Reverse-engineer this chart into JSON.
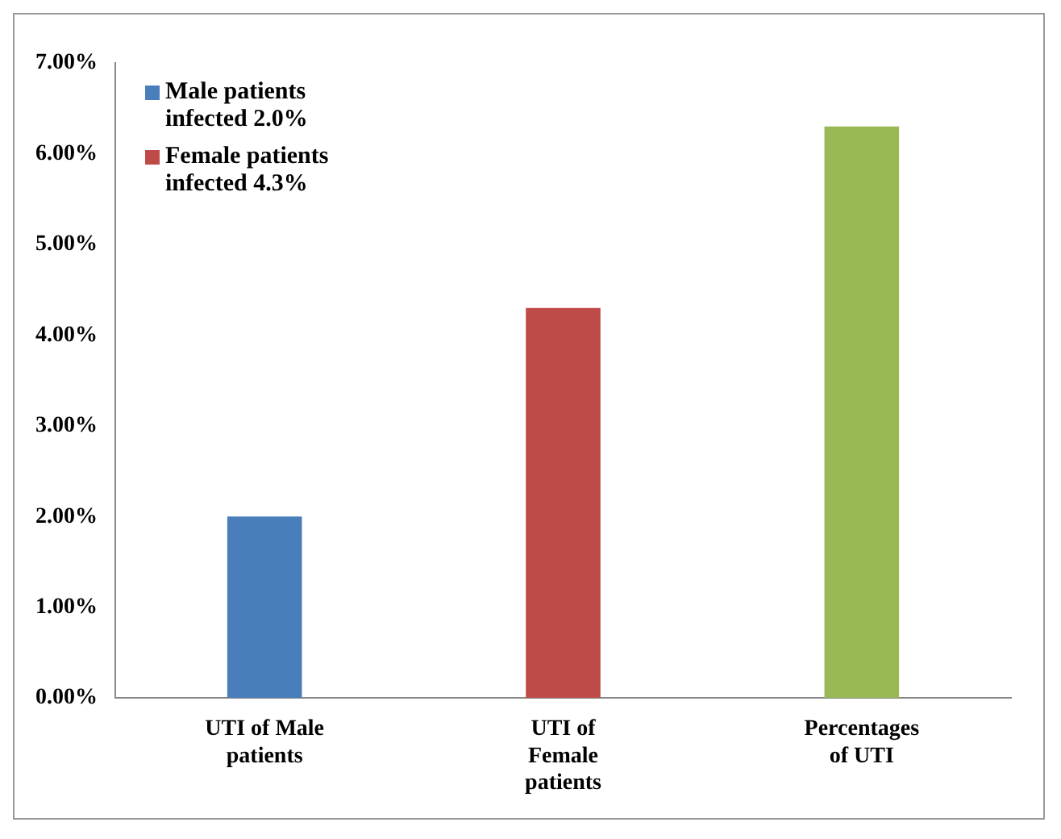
{
  "chart_data": {
    "type": "bar",
    "categories": [
      "UTI of Male patients",
      "UTI of Female patients",
      "Percentages of UTI"
    ],
    "series": [
      {
        "name": "Male patients infected 2.0%",
        "color": "#4a7ebb",
        "values": [
          2.0,
          null,
          null
        ]
      },
      {
        "name": "Female patients infected 4.3%",
        "color": "#be4b48",
        "values": [
          null,
          4.3,
          null
        ]
      },
      {
        "color": "#98b954",
        "values": [
          null,
          null,
          6.3
        ]
      }
    ],
    "ylim": [
      0,
      7
    ],
    "yticks": [
      {
        "value": 0,
        "label": "0.00%"
      },
      {
        "value": 1,
        "label": "1.00%"
      },
      {
        "value": 2,
        "label": "2.00%"
      },
      {
        "value": 3,
        "label": "3.00%"
      },
      {
        "value": 4,
        "label": "4.00%"
      },
      {
        "value": 5,
        "label": "5.00%"
      },
      {
        "value": 6,
        "label": "6.00%"
      },
      {
        "value": 7,
        "label": "7.00%"
      }
    ],
    "grid": false,
    "legend": "top left"
  }
}
